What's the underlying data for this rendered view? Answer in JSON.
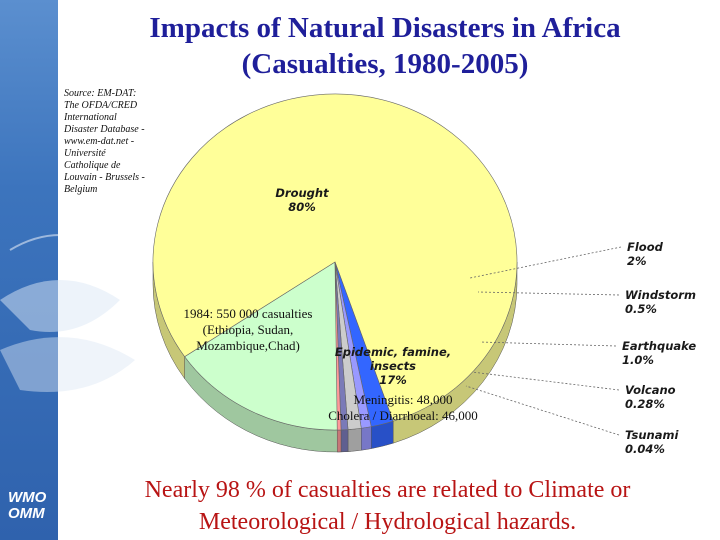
{
  "slide": {
    "title_line1": "Impacts of Natural Disasters in Africa",
    "title_line2": "(Casualties, 1980-2005)",
    "source": "Source: EM-DAT: The OFDA/CRED International Disaster Database - www.em-dat.net - Université Catholique de Louvain - Brussels - Belgium",
    "note_1984": [
      "1984: 550 000 casualties",
      "(Ethiopia, Sudan,",
      "Mozambique,Chad)"
    ],
    "note_disease": [
      "Meningitis: 48,000",
      "Cholera / Diarrhoeal: 46,000"
    ],
    "footer_line1": "Nearly 98 % of casualties are related to Climate or",
    "footer_line2": "Meteorological / Hydrological hazards.",
    "logo_line1": "WMO",
    "logo_line2": "OMM"
  },
  "chart_data": {
    "type": "pie",
    "title": "Impacts of Natural Disasters in Africa (Casualties, 1980-2005)",
    "slices": [
      {
        "name": "Drought",
        "value": 80,
        "label": "80%",
        "color": "#ffff99"
      },
      {
        "name": "Epidemic, famine, insects",
        "value": 17,
        "label": "17%",
        "color": "#ccffcc"
      },
      {
        "name": "Flood",
        "value": 2,
        "label": "2%",
        "color": "#3366ff"
      },
      {
        "name": "Windstorm",
        "value": 0.5,
        "label": "0.5%",
        "color": "#9999ff"
      },
      {
        "name": "Earthquake",
        "value": 1.0,
        "label": "1.0%",
        "color": "#cccccc"
      },
      {
        "name": "Volcano",
        "value": 0.28,
        "label": "0.28%",
        "color": "#7a7ab8"
      },
      {
        "name": "Tsunami",
        "value": 0.04,
        "label": "0.04%",
        "color": "#ff9999"
      }
    ],
    "legend": "none",
    "style": "3d-tilted"
  }
}
